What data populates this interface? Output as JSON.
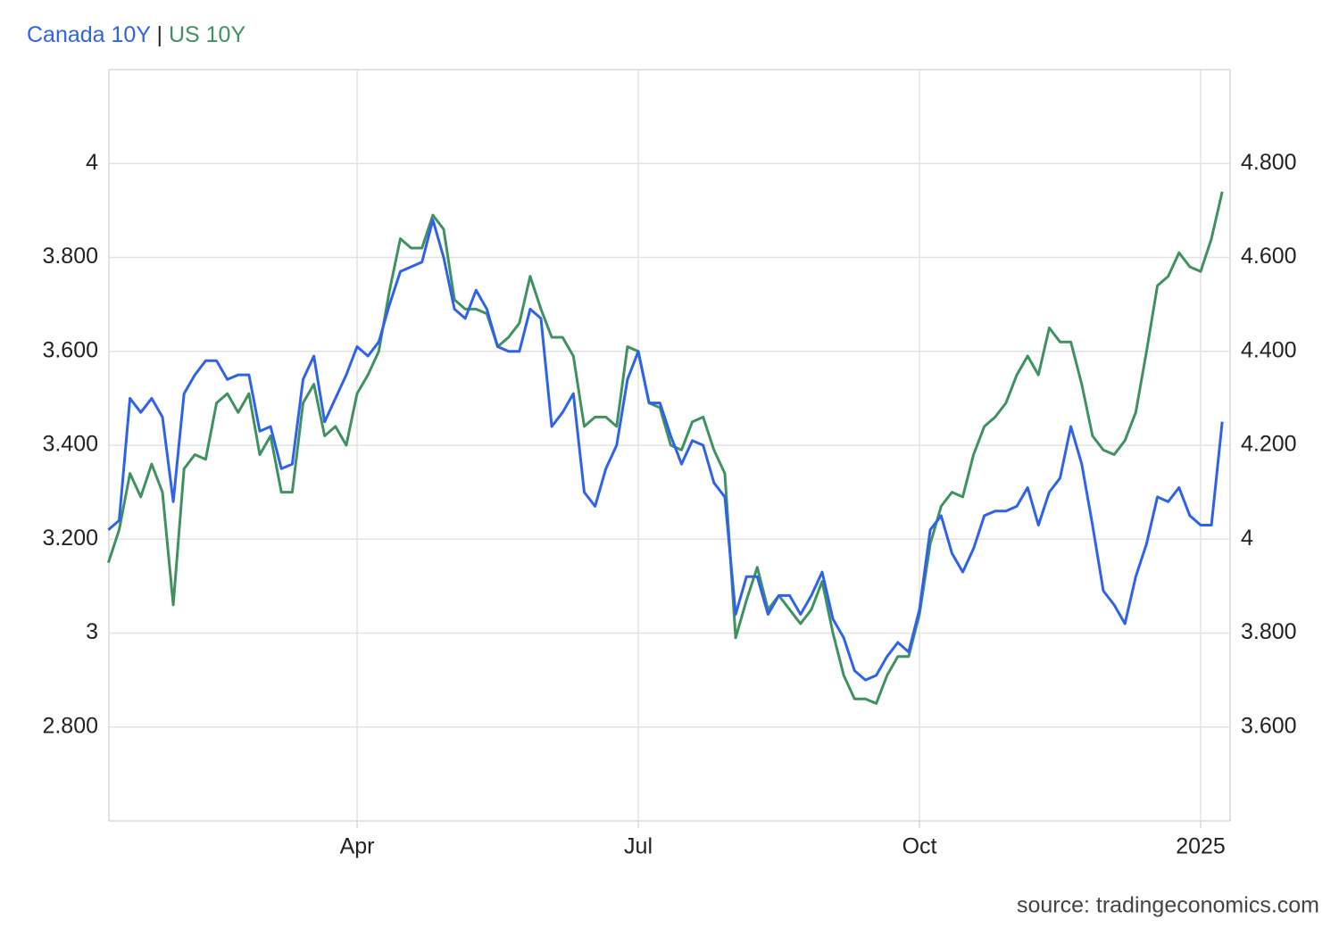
{
  "chart_data": {
    "type": "line",
    "legend_separator": "|",
    "source": "source: tradingeconomics.com",
    "categories": [
      null,
      null,
      null,
      null,
      null,
      null,
      null,
      null,
      null,
      null,
      null,
      null,
      null,
      null,
      null,
      null,
      null,
      null,
      null,
      null,
      null,
      null,
      null,
      "Apr",
      null,
      null,
      null,
      null,
      null,
      null,
      null,
      null,
      null,
      null,
      null,
      null,
      null,
      null,
      null,
      null,
      null,
      null,
      null,
      null,
      null,
      null,
      null,
      null,
      null,
      "Jul",
      null,
      null,
      null,
      null,
      null,
      null,
      null,
      null,
      null,
      null,
      null,
      null,
      null,
      null,
      null,
      null,
      null,
      null,
      null,
      null,
      null,
      null,
      null,
      null,
      null,
      "Oct",
      null,
      null,
      null,
      null,
      null,
      null,
      null,
      null,
      null,
      null,
      null,
      null,
      null,
      null,
      null,
      null,
      null,
      null,
      null,
      null,
      null,
      null,
      null,
      null,
      null,
      "2025",
      null,
      null
    ],
    "series": [
      {
        "name": "Canada 10Y",
        "color": "#2e62ea",
        "axis": "y",
        "values": [
          3.22,
          3.24,
          3.5,
          3.47,
          3.5,
          3.46,
          3.28,
          3.51,
          3.55,
          3.58,
          3.58,
          3.54,
          3.55,
          3.55,
          3.43,
          3.44,
          3.35,
          3.36,
          3.54,
          3.59,
          3.45,
          3.5,
          3.55,
          3.61,
          3.59,
          3.62,
          3.7,
          3.77,
          3.78,
          3.79,
          3.88,
          3.8,
          3.69,
          3.67,
          3.73,
          3.69,
          3.61,
          3.6,
          3.6,
          3.69,
          3.67,
          3.44,
          3.47,
          3.51,
          3.3,
          3.27,
          3.35,
          3.4,
          3.54,
          3.6,
          3.49,
          3.49,
          3.42,
          3.36,
          3.41,
          3.4,
          3.32,
          3.29,
          3.04,
          3.12,
          3.12,
          3.04,
          3.08,
          3.08,
          3.04,
          3.08,
          3.13,
          3.03,
          2.99,
          2.92,
          2.9,
          2.91,
          2.95,
          2.98,
          2.96,
          3.05,
          3.22,
          3.25,
          3.17,
          3.13,
          3.18,
          3.25,
          3.26,
          3.26,
          3.27,
          3.31,
          3.23,
          3.3,
          3.33,
          3.44,
          3.36,
          3.23,
          3.09,
          3.06,
          3.02,
          3.12,
          3.19,
          3.29,
          3.28,
          3.31,
          3.25,
          3.23,
          3.23,
          3.45
        ]
      },
      {
        "name": "US 10Y",
        "color": "#3f9160",
        "axis": "y2",
        "values": [
          3.95,
          4.02,
          4.14,
          4.09,
          4.16,
          4.1,
          3.86,
          4.15,
          4.18,
          4.17,
          4.29,
          4.31,
          4.27,
          4.31,
          4.18,
          4.22,
          4.1,
          4.1,
          4.29,
          4.33,
          4.22,
          4.24,
          4.2,
          4.31,
          4.35,
          4.4,
          4.53,
          4.64,
          4.62,
          4.62,
          4.69,
          4.66,
          4.51,
          4.49,
          4.49,
          4.48,
          4.41,
          4.43,
          4.46,
          4.56,
          4.49,
          4.43,
          4.43,
          4.39,
          4.24,
          4.26,
          4.26,
          4.24,
          4.41,
          4.4,
          4.29,
          4.28,
          4.2,
          4.19,
          4.25,
          4.26,
          4.19,
          4.14,
          3.79,
          3.87,
          3.94,
          3.85,
          3.88,
          3.85,
          3.82,
          3.85,
          3.91,
          3.8,
          3.71,
          3.66,
          3.66,
          3.65,
          3.71,
          3.75,
          3.75,
          3.84,
          3.99,
          4.07,
          4.1,
          4.09,
          4.18,
          4.24,
          4.26,
          4.29,
          4.35,
          4.39,
          4.35,
          4.45,
          4.42,
          4.42,
          4.33,
          4.22,
          4.19,
          4.18,
          4.21,
          4.27,
          4.4,
          4.54,
          4.56,
          4.61,
          4.58,
          4.57,
          4.64,
          4.74
        ]
      }
    ],
    "ylim": [
      2.6,
      4.2
    ],
    "yticks": [
      {
        "value": 2.8,
        "label": "2.800"
      },
      3,
      {
        "value": 3.2,
        "label": "3.200"
      },
      {
        "value": 3.4,
        "label": "3.400"
      },
      {
        "value": 3.6,
        "label": "3.600"
      },
      {
        "value": 3.8,
        "label": "3.800"
      },
      4
    ],
    "y2lim": [
      3.4,
      5.0
    ],
    "y2ticks": [
      {
        "value": 3.6,
        "label": "3.600"
      },
      {
        "value": 3.8,
        "label": "3.800"
      },
      4,
      {
        "value": 4.2,
        "label": "4.200"
      },
      {
        "value": 4.4,
        "label": "4.400"
      },
      {
        "value": 4.6,
        "label": "4.600"
      },
      {
        "value": 4.8,
        "label": "4.800"
      }
    ],
    "grid": true
  }
}
